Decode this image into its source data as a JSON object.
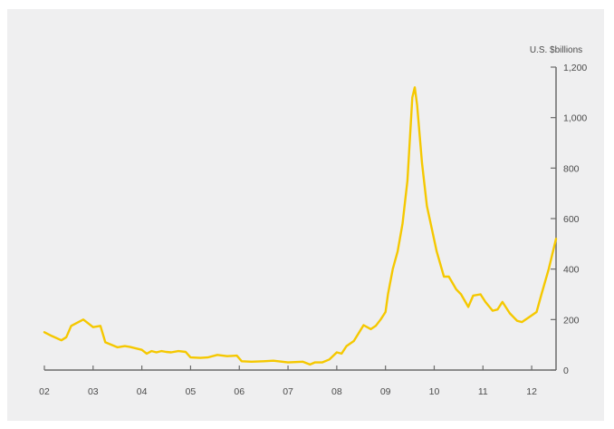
{
  "chart_data": {
    "type": "line",
    "ylabel": "U.S. $billions",
    "ylim": [
      0,
      1200
    ],
    "y_ticks": [
      0,
      200,
      400,
      600,
      800,
      1000,
      1200
    ],
    "y_tick_labels": [
      "0",
      "200",
      "400",
      "600",
      "800",
      "1,000",
      "1,200"
    ],
    "xlim": [
      2002,
      2012.5
    ],
    "x_ticks": [
      2002,
      2003,
      2004,
      2005,
      2006,
      2007,
      2008,
      2009,
      2010,
      2011,
      2012
    ],
    "x_tick_labels": [
      "02",
      "03",
      "04",
      "05",
      "06",
      "07",
      "08",
      "09",
      "10",
      "11",
      "12"
    ],
    "grid": false,
    "y_axis_position": "right",
    "series": [
      {
        "color": "#f5c800",
        "x": [
          2002.0,
          2002.15,
          2002.35,
          2002.45,
          2002.55,
          2002.8,
          2003.0,
          2003.15,
          2003.25,
          2003.5,
          2003.65,
          2003.75,
          2004.0,
          2004.1,
          2004.2,
          2004.3,
          2004.4,
          2004.5,
          2004.6,
          2004.75,
          2004.9,
          2005.0,
          2005.2,
          2005.35,
          2005.55,
          2005.75,
          2005.95,
          2006.05,
          2006.25,
          2006.5,
          2006.7,
          2007.0,
          2007.3,
          2007.45,
          2007.55,
          2007.7,
          2007.85,
          2008.0,
          2008.1,
          2008.2,
          2008.35,
          2008.55,
          2008.7,
          2008.8,
          2008.9,
          2009.0,
          2009.05,
          2009.15,
          2009.25,
          2009.35,
          2009.45,
          2009.55,
          2009.6,
          2009.65,
          2009.75,
          2009.85,
          2009.95,
          2010.05,
          2010.2,
          2010.3,
          2010.45,
          2010.55,
          2010.7,
          2010.8,
          2010.95,
          2011.05,
          2011.2,
          2011.3,
          2011.4,
          2011.55,
          2011.7,
          2011.8,
          2011.95,
          2012.1,
          2012.2,
          2012.35,
          2012.5
        ],
        "y": [
          150,
          135,
          118,
          130,
          175,
          200,
          170,
          175,
          110,
          90,
          95,
          92,
          80,
          65,
          75,
          70,
          75,
          72,
          70,
          75,
          72,
          50,
          48,
          50,
          60,
          55,
          57,
          35,
          33,
          35,
          37,
          30,
          33,
          22,
          30,
          30,
          42,
          70,
          65,
          95,
          115,
          178,
          162,
          175,
          200,
          230,
          300,
          400,
          470,
          580,
          750,
          1080,
          1120,
          1050,
          820,
          650,
          560,
          470,
          370,
          370,
          320,
          300,
          250,
          295,
          300,
          270,
          235,
          240,
          270,
          225,
          195,
          190,
          210,
          230,
          300,
          400,
          520
        ]
      }
    ]
  }
}
